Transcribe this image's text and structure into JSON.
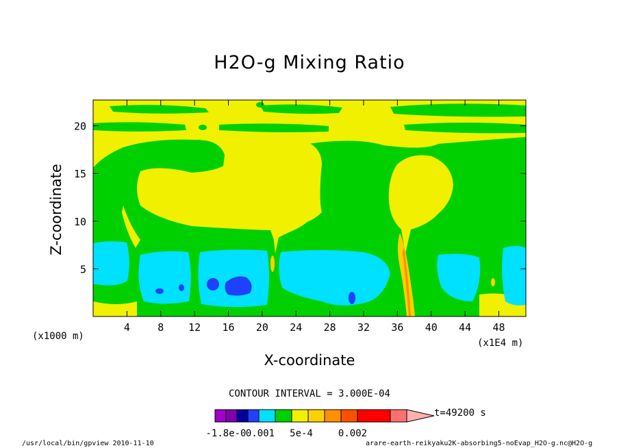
{
  "chart_data": {
    "type": "heatmap",
    "title": "H2O-g Mixing Ratio",
    "xlabel": "X-coordinate",
    "ylabel": "Z-coordinate",
    "x_unit_left": "(x1000 m)",
    "x_unit_right": "(x1E4 m)",
    "x_ticks": [
      "4",
      "8",
      "12",
      "16",
      "20",
      "24",
      "28",
      "32",
      "36",
      "40",
      "44",
      "48"
    ],
    "y_ticks": [
      "5",
      "10",
      "15",
      "20"
    ],
    "xlim": [
      0,
      51.2
    ],
    "ylim": [
      0,
      22.7
    ],
    "contour_interval": "CONTOUR INTERVAL = 3.000E-04",
    "time_label": "t=49200 s",
    "colorbar_labels": [
      "-1.8e-0",
      "0.001",
      "5e-4",
      "0.002"
    ],
    "colorbar_colors": [
      "#a000c8",
      "#8000b0",
      "#0000a0",
      "#2040ff",
      "#00e0ff",
      "#00d000",
      "#f0f000",
      "#ffd000",
      "#ff9000",
      "#ff5000",
      "#ff0000",
      "#ff7070",
      "#ffb0b0"
    ],
    "colors": {
      "background": "#f0f000",
      "green": "#00d000",
      "cyan": "#00e0ff",
      "blue": "#2040ff",
      "darkblue": "#0000a0",
      "orange": "#ffd000",
      "darkorange": "#ff9000",
      "red": "#ff5000"
    }
  },
  "footer": {
    "left": "/usr/local/bin/gpview  2010-11-10",
    "right": "arare-earth-reikyaku2K-absorbing5-noEvap_H2O-g.nc@H2O-g"
  }
}
